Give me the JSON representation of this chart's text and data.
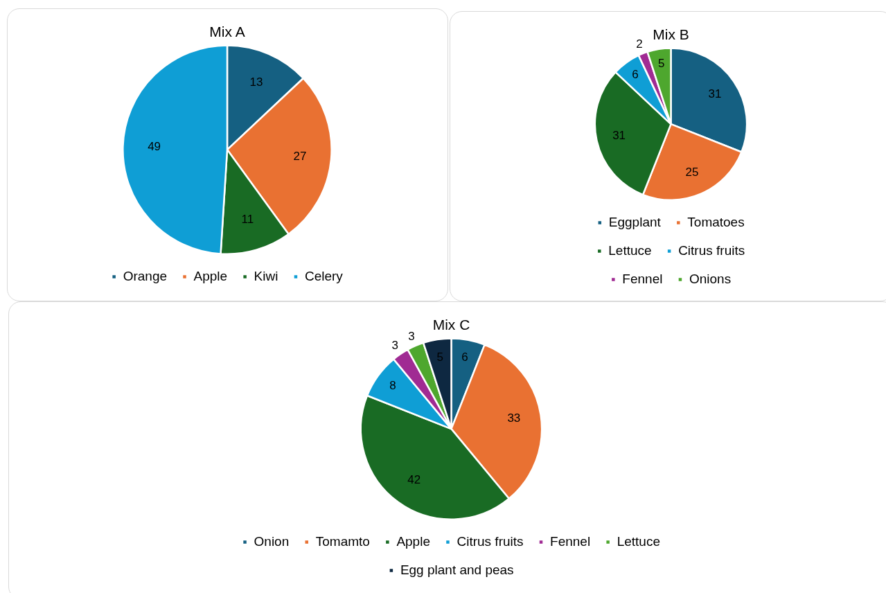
{
  "chart_data": [
    {
      "type": "pie",
      "title": "Mix A",
      "categories": [
        "Orange",
        "Apple",
        "Kiwi",
        "Celery"
      ],
      "values": [
        13,
        27,
        11,
        49
      ],
      "colors": [
        "#156082",
        "#e97132",
        "#196b24",
        "#0f9ed5"
      ],
      "data_labels": true,
      "legend": "bottom"
    },
    {
      "type": "pie",
      "title": "Mix B",
      "categories": [
        "Eggplant",
        "Tomatoes",
        "Lettuce",
        "Citrus fruits",
        "Fennel",
        "Onions"
      ],
      "values": [
        31,
        25,
        31,
        6,
        2,
        5
      ],
      "colors": [
        "#156082",
        "#e97132",
        "#196b24",
        "#0f9ed5",
        "#a02b93",
        "#4ea72e"
      ],
      "data_labels": true,
      "legend": "bottom"
    },
    {
      "type": "pie",
      "title": "Mix C",
      "categories": [
        "Onion",
        "Tomamto",
        "Apple",
        "Citrus fruits",
        "Fennel",
        "Lettuce",
        "Egg plant and peas"
      ],
      "values": [
        6,
        33,
        42,
        8,
        3,
        3,
        5
      ],
      "colors": [
        "#156082",
        "#e97132",
        "#196b24",
        "#0f9ed5",
        "#a02b93",
        "#4ea72e",
        "#0e2841"
      ],
      "data_labels": true,
      "legend": "bottom"
    }
  ]
}
